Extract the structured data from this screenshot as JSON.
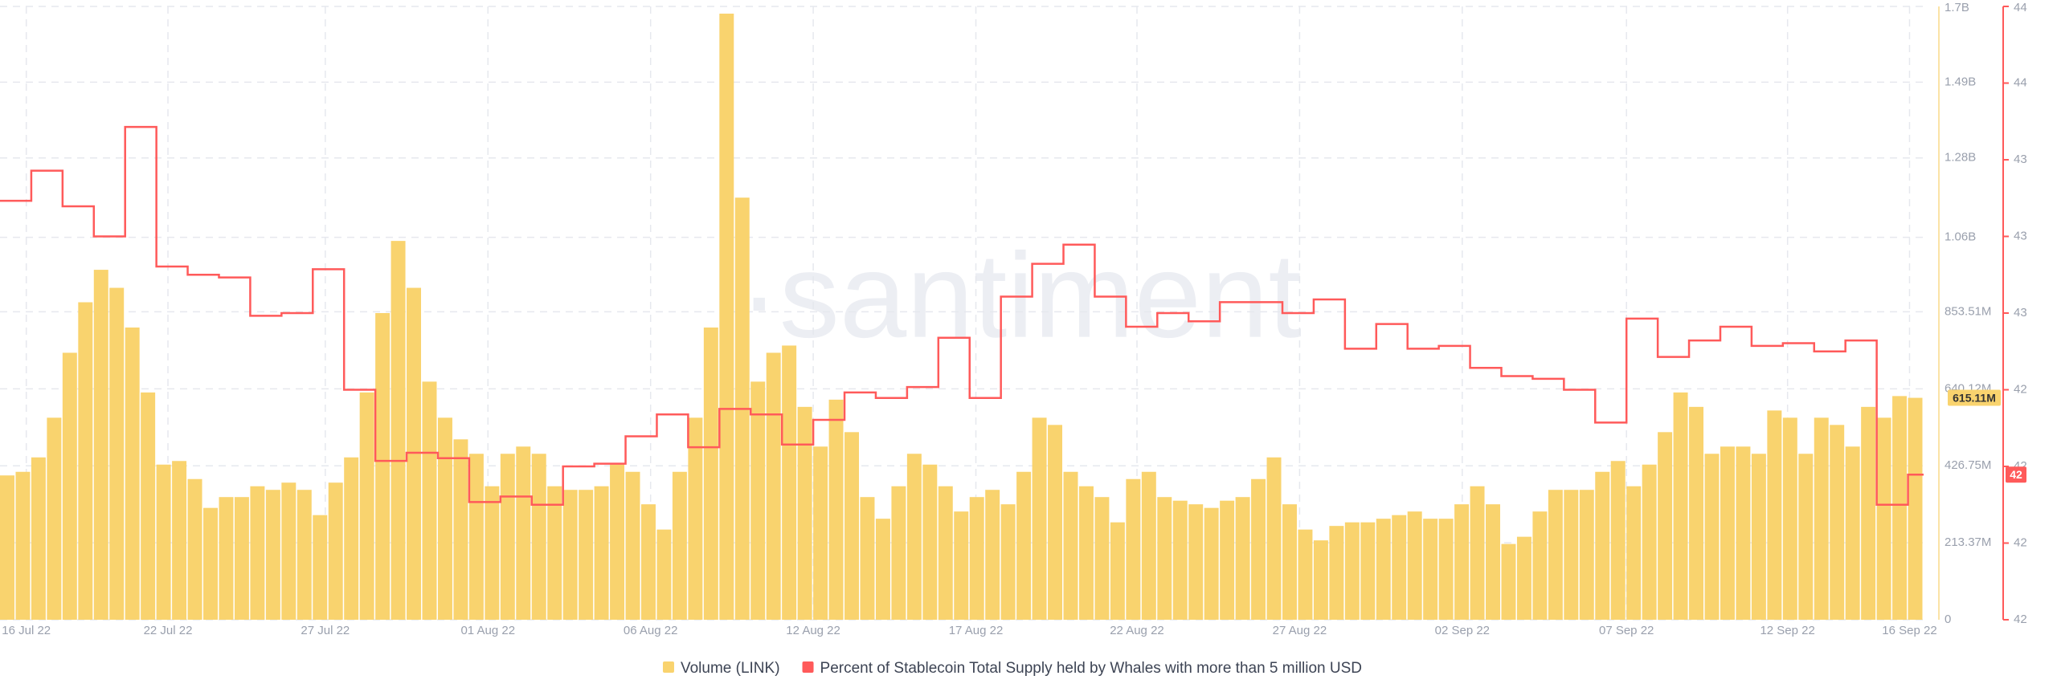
{
  "chart_data": {
    "type": "bar_step_line",
    "watermark": "·santiment",
    "xlim": [
      0,
      123
    ],
    "xticks": [
      {
        "value": 1.68,
        "label": "16 Jul 22"
      },
      {
        "value": 10.74,
        "label": "22 Jul 22"
      },
      {
        "value": 20.8,
        "label": "27 Jul 22"
      },
      {
        "value": 31.2,
        "label": "01 Aug 22"
      },
      {
        "value": 41.6,
        "label": "06 Aug 22"
      },
      {
        "value": 52.0,
        "label": "12 Aug 22"
      },
      {
        "value": 62.4,
        "label": "17 Aug 22"
      },
      {
        "value": 72.7,
        "label": "22 Aug 22"
      },
      {
        "value": 83.1,
        "label": "27 Aug 22"
      },
      {
        "value": 93.5,
        "label": "02 Sep 22"
      },
      {
        "value": 104.0,
        "label": "07 Sep 22"
      },
      {
        "value": 114.3,
        "label": "12 Sep 22"
      },
      {
        "value": 122.1,
        "label": "16 Sep 22"
      }
    ],
    "ylim": [
      0,
      1700000000
    ],
    "yticks": [
      0,
      {
        "value": 213370000,
        "label": "213.37M"
      },
      {
        "value": 426750000,
        "label": "426.75M"
      },
      {
        "value": 640120000,
        "label": "640.12M"
      },
      {
        "value": 853510000,
        "label": "853.51M"
      },
      {
        "value": 1060000000,
        "label": "1.06B"
      },
      {
        "value": 1280000000,
        "label": "1.28B"
      },
      {
        "value": 1490000000,
        "label": "1.49B"
      },
      {
        "value": 1700000000,
        "label": "1.7B"
      }
    ],
    "y2lim": [
      41.6,
      43.84
    ],
    "y2ticks": [
      {
        "value": 41.6,
        "label": "42"
      },
      {
        "value": 41.88,
        "label": "42"
      },
      {
        "value": 42.16,
        "label": "42"
      },
      {
        "value": 42.44,
        "label": "42"
      },
      {
        "value": 42.72,
        "label": "43"
      },
      {
        "value": 43.0,
        "label": "43"
      },
      {
        "value": 43.28,
        "label": "43"
      },
      {
        "value": 43.56,
        "label": "44"
      },
      {
        "value": 43.84,
        "label": "44"
      }
    ],
    "grid": true,
    "legend": "bottom",
    "series": [
      {
        "name": "Volume (LINK)",
        "color": "#f9d36e",
        "last_value_label": "615.11M",
        "values": [
          400000000,
          410000000,
          450000000,
          560000000,
          740000000,
          880000000,
          970000000,
          920000000,
          810000000,
          630000000,
          430000000,
          440000000,
          390000000,
          310000000,
          340000000,
          340000000,
          370000000,
          360000000,
          380000000,
          360000000,
          290000000,
          380000000,
          450000000,
          630000000,
          850000000,
          1050000000,
          920000000,
          660000000,
          560000000,
          500000000,
          460000000,
          370000000,
          460000000,
          480000000,
          460000000,
          370000000,
          360000000,
          360000000,
          370000000,
          430000000,
          410000000,
          320000000,
          250000000,
          410000000,
          560000000,
          810000000,
          1680000000,
          1170000000,
          660000000,
          740000000,
          760000000,
          590000000,
          480000000,
          610000000,
          520000000,
          340000000,
          280000000,
          370000000,
          460000000,
          430000000,
          370000000,
          300000000,
          340000000,
          360000000,
          320000000,
          410000000,
          560000000,
          540000000,
          410000000,
          370000000,
          340000000,
          270000000,
          390000000,
          410000000,
          340000000,
          330000000,
          320000000,
          310000000,
          330000000,
          340000000,
          390000000,
          450000000,
          320000000,
          250000000,
          220000000,
          260000000,
          270000000,
          270000000,
          280000000,
          290000000,
          300000000,
          280000000,
          280000000,
          320000000,
          370000000,
          320000000,
          210000000,
          230000000,
          300000000,
          360000000,
          360000000,
          360000000,
          410000000,
          440000000,
          370000000,
          430000000,
          520000000,
          630000000,
          590000000,
          460000000,
          480000000,
          480000000,
          460000000,
          580000000,
          560000000,
          460000000,
          560000000,
          540000000,
          480000000,
          590000000,
          560000000,
          620000000,
          615110000
        ]
      },
      {
        "name": "Percent of Stablecoin Total Supply held by Whales with more than 5 million USD",
        "color": "#ff5a5a",
        "axis": "y2",
        "step": true,
        "last_value_label": "42",
        "values": [
          43.13,
          43.13,
          43.24,
          43.24,
          43.11,
          43.11,
          43.0,
          43.0,
          43.4,
          43.4,
          42.89,
          42.89,
          42.86,
          42.86,
          42.85,
          42.85,
          42.71,
          42.71,
          42.72,
          42.72,
          42.88,
          42.88,
          42.44,
          42.44,
          42.18,
          42.18,
          42.21,
          42.21,
          42.19,
          42.19,
          42.03,
          42.03,
          42.05,
          42.05,
          42.02,
          42.02,
          42.16,
          42.16,
          42.17,
          42.17,
          42.27,
          42.27,
          42.35,
          42.35,
          42.23,
          42.23,
          42.37,
          42.37,
          42.35,
          42.35,
          42.24,
          42.24,
          42.33,
          42.33,
          42.43,
          42.43,
          42.41,
          42.41,
          42.45,
          42.45,
          42.63,
          42.63,
          42.41,
          42.41,
          42.78,
          42.78,
          42.9,
          42.9,
          42.97,
          42.97,
          42.78,
          42.78,
          42.67,
          42.67,
          42.72,
          42.72,
          42.69,
          42.69,
          42.76,
          42.76,
          42.76,
          42.76,
          42.72,
          42.72,
          42.77,
          42.77,
          42.59,
          42.59,
          42.68,
          42.68,
          42.59,
          42.59,
          42.6,
          42.6,
          42.52,
          42.52,
          42.49,
          42.49,
          42.48,
          42.48,
          42.44,
          42.44,
          42.32,
          42.32,
          42.7,
          42.7,
          42.56,
          42.56,
          42.62,
          42.62,
          42.67,
          42.67,
          42.6,
          42.6,
          42.61,
          42.61,
          42.58,
          42.58,
          42.62,
          42.62,
          42.02,
          42.02,
          42.13
        ]
      }
    ]
  }
}
